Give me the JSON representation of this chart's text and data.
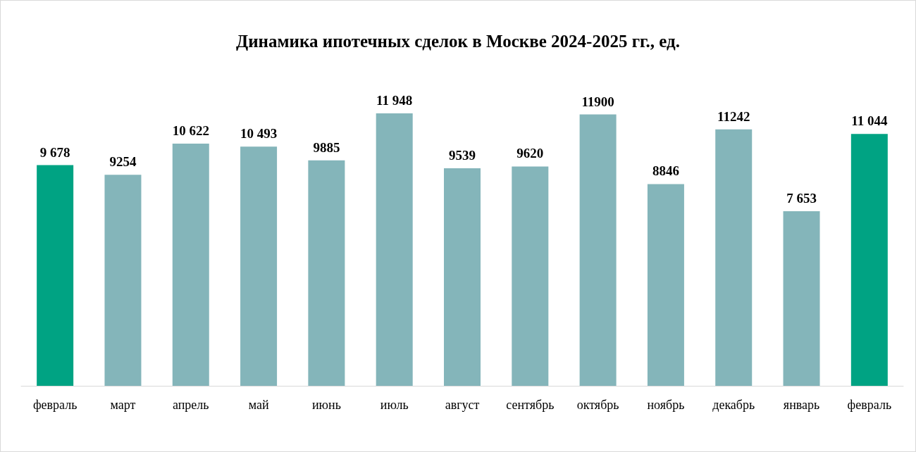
{
  "chart_data": {
    "type": "bar",
    "title": "Динамика ипотечных сделок в Москве 2024-2025 гг., ед.",
    "categories": [
      "февраль",
      "март",
      "апрель",
      "май",
      "июнь",
      "июль",
      "август",
      "сентябрь",
      "октябрь",
      "ноябрь",
      "декабрь",
      "январь",
      "февраль"
    ],
    "values": [
      9678,
      9254,
      10622,
      10493,
      9885,
      11948,
      9539,
      9620,
      11900,
      8846,
      11242,
      7653,
      11044
    ],
    "colors": [
      "#00a383",
      "#84b5ba",
      "#84b5ba",
      "#84b5ba",
      "#84b5ba",
      "#84b5ba",
      "#84b5ba",
      "#84b5ba",
      "#84b5ba",
      "#84b5ba",
      "#84b5ba",
      "#84b5ba",
      "#00a383"
    ],
    "value_labels": [
      "9 678",
      "9254",
      "10 622",
      "10 493",
      "9885",
      "11 948",
      "9539",
      "9620",
      "11900",
      "8846",
      "11242",
      "7 653",
      "11 044"
    ]
  }
}
